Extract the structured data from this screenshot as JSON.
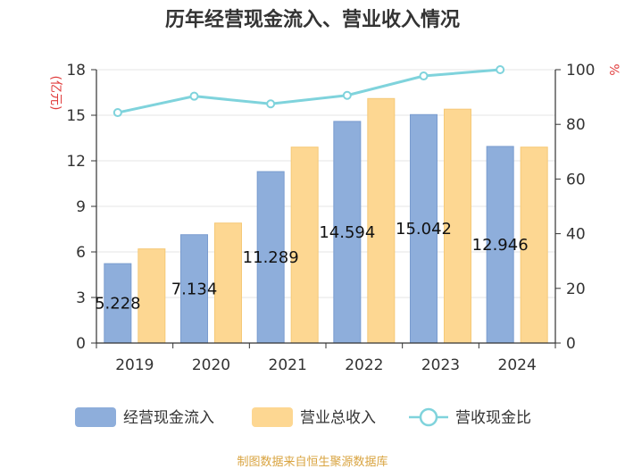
{
  "chart_data": {
    "type": "bar",
    "title": "历年经营现金流入、营业收入情况",
    "categories": [
      "2019",
      "2020",
      "2021",
      "2022",
      "2023",
      "2024"
    ],
    "series": [
      {
        "name": "经营现金流入",
        "type": "bar",
        "axis": "left",
        "values": [
          5.228,
          7.134,
          11.289,
          14.594,
          15.042,
          12.946
        ],
        "labels": [
          "5.228",
          "7.134",
          "11.289",
          "14.594",
          "15.042",
          "12.946"
        ],
        "color": "#8eaedb"
      },
      {
        "name": "营业总收入",
        "type": "bar",
        "axis": "left",
        "values": [
          6.2,
          7.9,
          12.9,
          16.1,
          15.4,
          12.9
        ],
        "color": "#fdd792"
      },
      {
        "name": "营收现金比",
        "type": "line",
        "axis": "right",
        "values": [
          84.3,
          90.3,
          87.5,
          90.6,
          97.7,
          100.0
        ],
        "color": "#7fd3dc"
      }
    ],
    "left_axis": {
      "label": "(亿元)",
      "ylim": [
        0,
        18
      ],
      "ticks": [
        "0",
        "3",
        "6",
        "9",
        "12",
        "15",
        "18"
      ]
    },
    "right_axis": {
      "label": "%",
      "ylim": [
        0,
        100
      ],
      "ticks": [
        "0",
        "20",
        "40",
        "60",
        "80",
        "100"
      ]
    },
    "grid": true,
    "legend_position": "bottom"
  },
  "source_note": "制图数据来自恒生聚源数据库",
  "colors": {
    "axis_label_red": "#e03c3c",
    "grid": "#e6e6e6",
    "axis": "#333333"
  }
}
